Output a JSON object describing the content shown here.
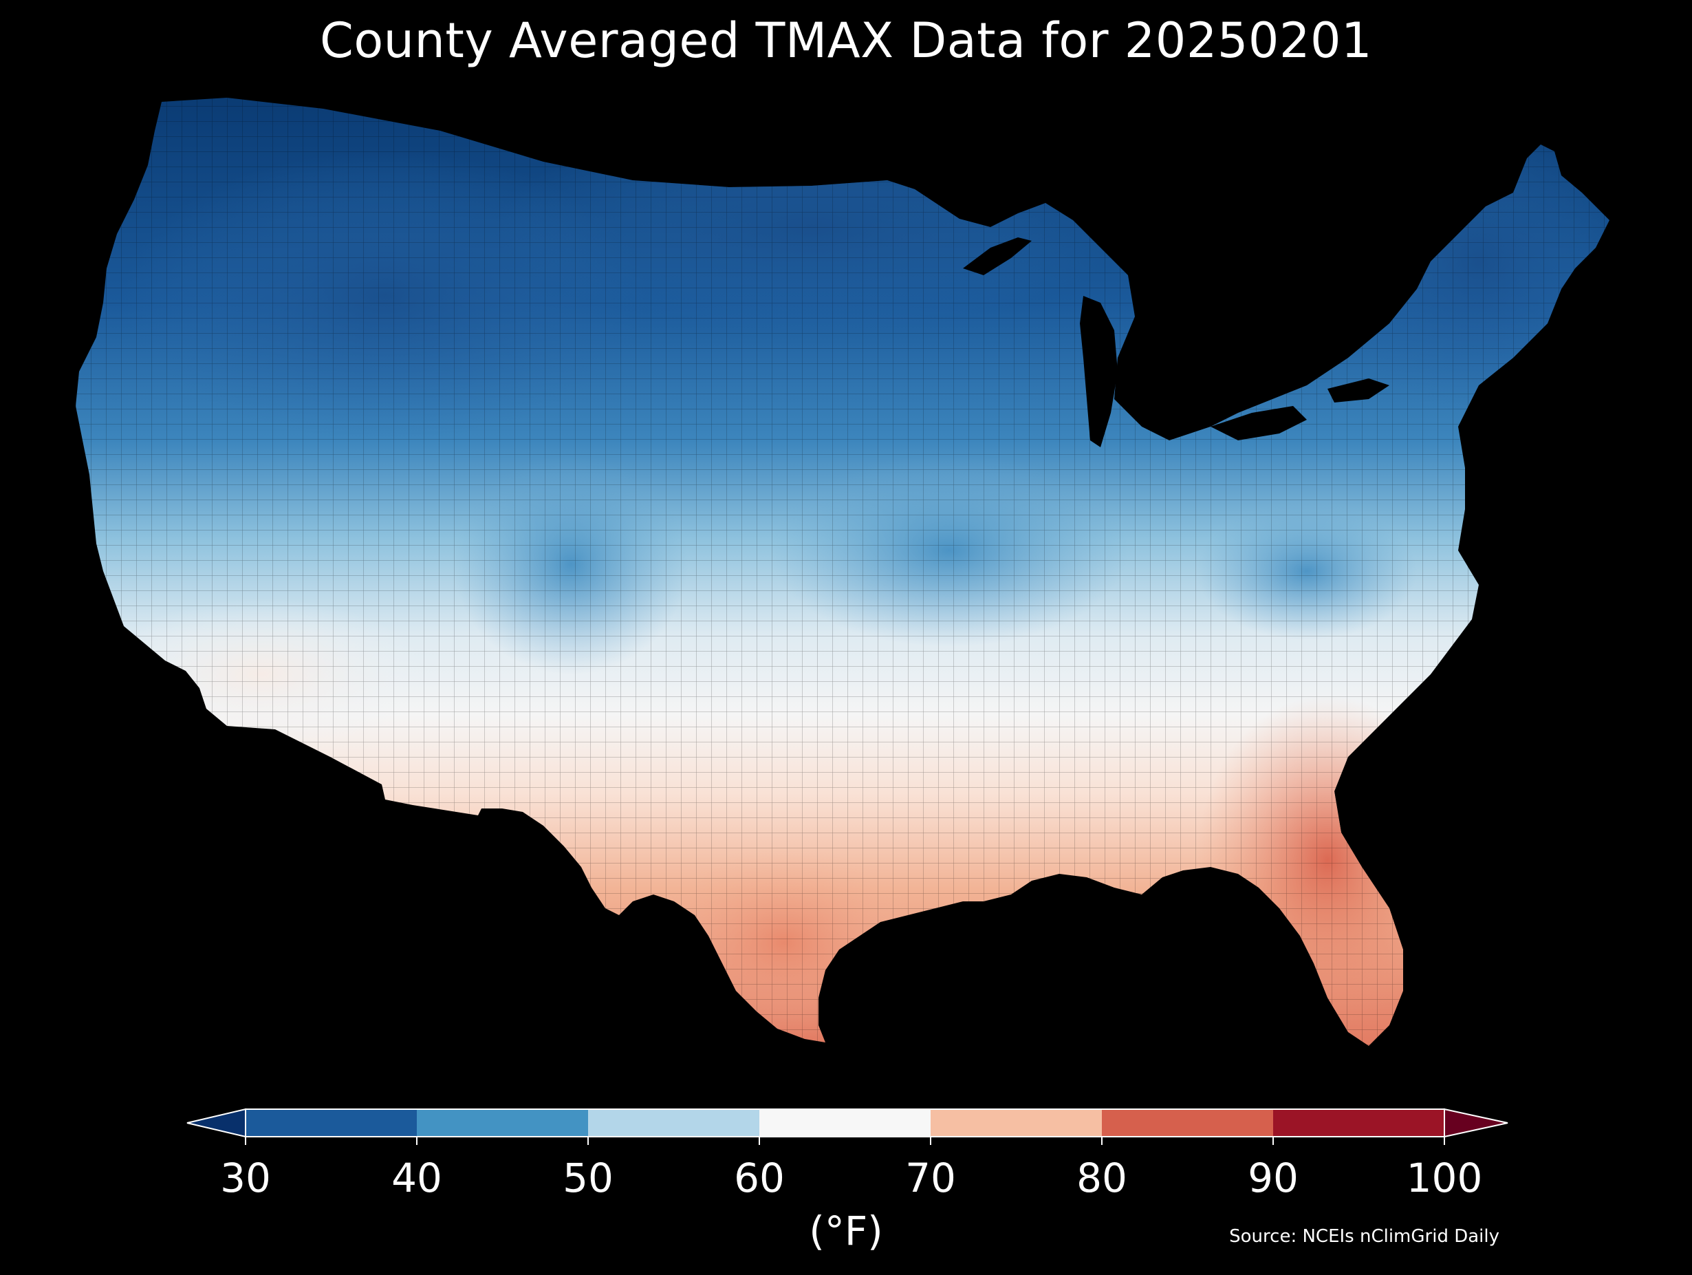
{
  "title": "County Averaged TMAX Data for 20250201",
  "colorbar": {
    "unit": "(°F)",
    "ticks": [
      "30",
      "40",
      "50",
      "60",
      "70",
      "80",
      "90",
      "100"
    ],
    "bins": [
      {
        "from": 30,
        "to": 40,
        "color": "#1b5a9b"
      },
      {
        "from": 40,
        "to": 50,
        "color": "#4393c3"
      },
      {
        "from": 50,
        "to": 60,
        "color": "#b3d6e9"
      },
      {
        "from": 60,
        "to": 70,
        "color": "#f7f7f7"
      },
      {
        "from": 70,
        "to": 80,
        "color": "#f6bfa3"
      },
      {
        "from": 80,
        "to": 90,
        "color": "#d6604d"
      },
      {
        "from": 90,
        "to": 100,
        "color": "#9b1426"
      }
    ],
    "under_color": "#08306b",
    "over_color": "#67001f"
  },
  "source": "Source: NCEIs nClimGrid Daily",
  "colors": {
    "background": "#000000",
    "text": "#ffffff"
  }
}
